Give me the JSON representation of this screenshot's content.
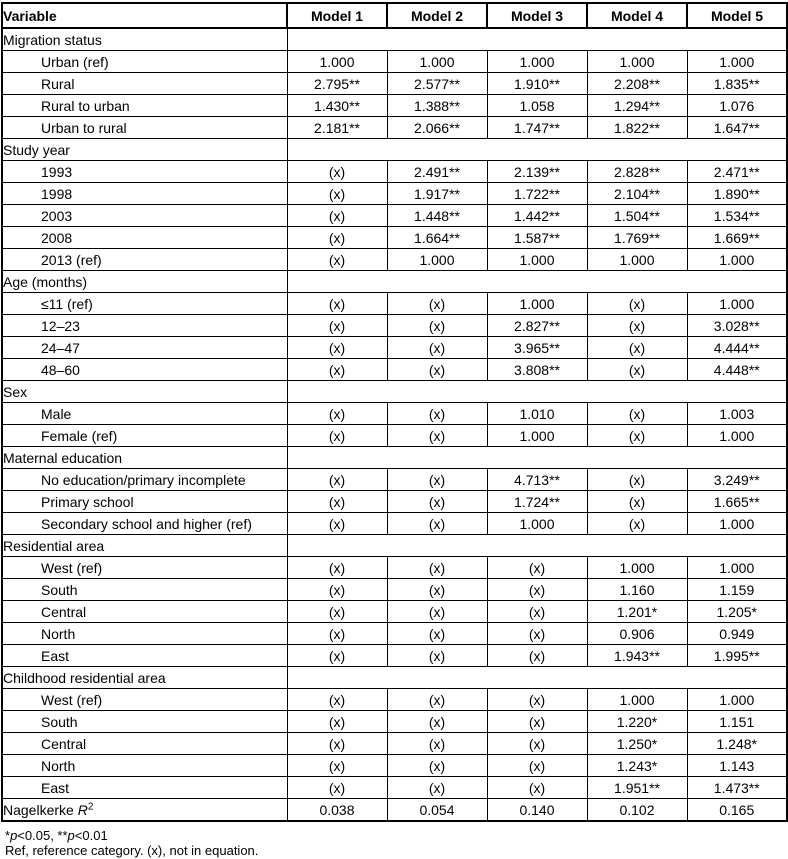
{
  "table": {
    "columns": [
      "Variable",
      "Model 1",
      "Model 2",
      "Model 3",
      "Model 4",
      "Model 5"
    ],
    "rows": [
      {
        "type": "section",
        "label": "Migration status"
      },
      {
        "type": "item",
        "label": "Urban (ref)",
        "values": [
          "1.000",
          "1.000",
          "1.000",
          "1.000",
          "1.000"
        ]
      },
      {
        "type": "item",
        "label": "Rural",
        "values": [
          "2.795**",
          "2.577**",
          "1.910**",
          "2.208**",
          "1.835**"
        ]
      },
      {
        "type": "item",
        "label": "Rural to urban",
        "values": [
          "1.430**",
          "1.388**",
          "1.058",
          "1.294**",
          "1.076"
        ]
      },
      {
        "type": "item",
        "label": "Urban to rural",
        "values": [
          "2.181**",
          "2.066**",
          "1.747**",
          "1.822**",
          "1.647**"
        ]
      },
      {
        "type": "section",
        "label": "Study year"
      },
      {
        "type": "item",
        "label": "1993",
        "values": [
          "(x)",
          "2.491**",
          "2.139**",
          "2.828**",
          "2.471**"
        ]
      },
      {
        "type": "item",
        "label": "1998",
        "values": [
          "(x)",
          "1.917**",
          "1.722**",
          "2.104**",
          "1.890**"
        ]
      },
      {
        "type": "item",
        "label": "2003",
        "values": [
          "(x)",
          "1.448**",
          "1.442**",
          "1.504**",
          "1.534**"
        ]
      },
      {
        "type": "item",
        "label": "2008",
        "values": [
          "(x)",
          "1.664**",
          "1.587**",
          "1.769**",
          "1.669**"
        ]
      },
      {
        "type": "item",
        "label": "2013 (ref)",
        "values": [
          "(x)",
          "1.000",
          "1.000",
          "1.000",
          "1.000"
        ]
      },
      {
        "type": "section",
        "label": "Age (months)"
      },
      {
        "type": "item",
        "label": "≤11 (ref)",
        "values": [
          "(x)",
          "(x)",
          "1.000",
          "(x)",
          "1.000"
        ]
      },
      {
        "type": "item",
        "label": "12–23",
        "values": [
          "(x)",
          "(x)",
          "2.827**",
          "(x)",
          "3.028**"
        ]
      },
      {
        "type": "item",
        "label": "24–47",
        "values": [
          "(x)",
          "(x)",
          "3.965**",
          "(x)",
          "4.444**"
        ]
      },
      {
        "type": "item",
        "label": "48–60",
        "values": [
          "(x)",
          "(x)",
          "3.808**",
          "(x)",
          "4.448**"
        ]
      },
      {
        "type": "section",
        "label": "Sex"
      },
      {
        "type": "item",
        "label": "Male",
        "values": [
          "(x)",
          "(x)",
          "1.010",
          "(x)",
          "1.003"
        ]
      },
      {
        "type": "item",
        "label": "Female (ref)",
        "values": [
          "(x)",
          "(x)",
          "1.000",
          "(x)",
          "1.000"
        ]
      },
      {
        "type": "section",
        "label": "Maternal education"
      },
      {
        "type": "item",
        "label": "No education/primary incomplete",
        "values": [
          "(x)",
          "(x)",
          "4.713**",
          "(x)",
          "3.249**"
        ]
      },
      {
        "type": "item",
        "label": "Primary school",
        "values": [
          "(x)",
          "(x)",
          "1.724**",
          "(x)",
          "1.665**"
        ]
      },
      {
        "type": "item",
        "label": "Secondary school and higher (ref)",
        "values": [
          "(x)",
          "(x)",
          "1.000",
          "(x)",
          "1.000"
        ]
      },
      {
        "type": "section",
        "label": "Residential area"
      },
      {
        "type": "item",
        "label": "West (ref)",
        "values": [
          "(x)",
          "(x)",
          "(x)",
          "1.000",
          "1.000"
        ]
      },
      {
        "type": "item",
        "label": "South",
        "values": [
          "(x)",
          "(x)",
          "(x)",
          "1.160",
          "1.159"
        ]
      },
      {
        "type": "item",
        "label": "Central",
        "values": [
          "(x)",
          "(x)",
          "(x)",
          "1.201*",
          "1.205*"
        ]
      },
      {
        "type": "item",
        "label": "North",
        "values": [
          "(x)",
          "(x)",
          "(x)",
          "0.906",
          "0.949"
        ]
      },
      {
        "type": "item",
        "label": "East",
        "values": [
          "(x)",
          "(x)",
          "(x)",
          "1.943**",
          "1.995**"
        ]
      },
      {
        "type": "section",
        "label": "Childhood residential area"
      },
      {
        "type": "item",
        "label": "West (ref)",
        "values": [
          "(x)",
          "(x)",
          "(x)",
          "1.000",
          "1.000"
        ]
      },
      {
        "type": "item",
        "label": "South",
        "values": [
          "(x)",
          "(x)",
          "(x)",
          "1.220*",
          "1.151"
        ]
      },
      {
        "type": "item",
        "label": "Central",
        "values": [
          "(x)",
          "(x)",
          "(x)",
          "1.250*",
          "1.248*"
        ]
      },
      {
        "type": "item",
        "label": "North",
        "values": [
          "(x)",
          "(x)",
          "(x)",
          "1.243*",
          "1.143"
        ]
      },
      {
        "type": "item",
        "label": "East",
        "values": [
          "(x)",
          "(x)",
          "(x)",
          "1.951**",
          "1.473**"
        ]
      },
      {
        "type": "stat",
        "label_prefix": "Nagelkerke ",
        "label_italic": "R",
        "label_sup": "2",
        "values": [
          "0.038",
          "0.054",
          "0.140",
          "0.102",
          "0.165"
        ]
      }
    ]
  },
  "footnotes": [
    {
      "segments": [
        {
          "text": "*"
        },
        {
          "text": "p",
          "italic": true
        },
        {
          "text": "<0.05, **"
        },
        {
          "text": "p",
          "italic": true
        },
        {
          "text": "<0.01"
        }
      ]
    },
    {
      "segments": [
        {
          "text": "Ref, reference category. (x), not in equation."
        }
      ]
    }
  ],
  "colors": {
    "border": "#000000",
    "text": "#000000",
    "background": "#ffffff"
  }
}
